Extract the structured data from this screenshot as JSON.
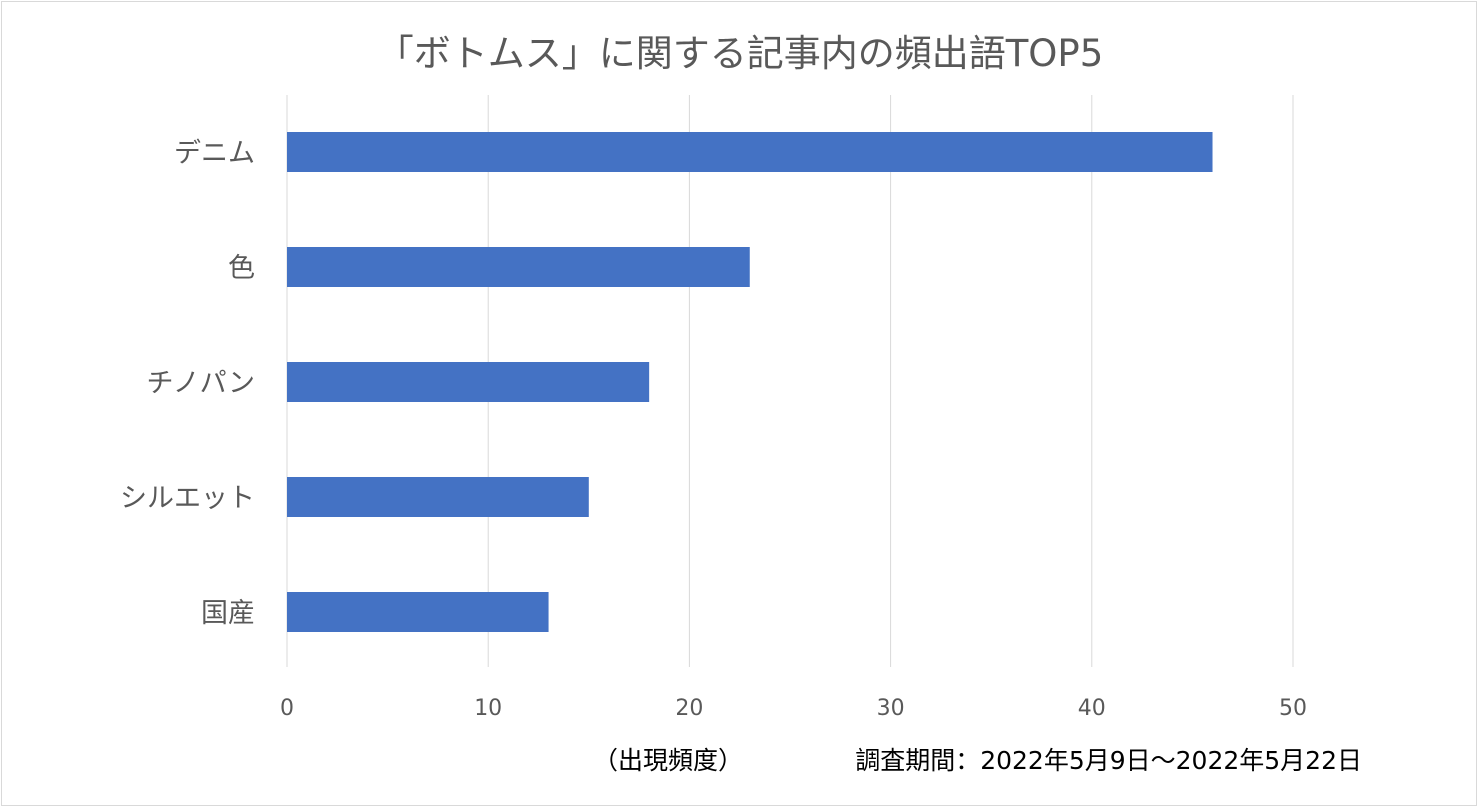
{
  "chart_data": {
    "type": "bar",
    "orientation": "horizontal",
    "title": "「ボトムス」に関する記事内の頻出語TOP5",
    "categories": [
      "デニム",
      "色",
      "チノパン",
      "シルエット",
      "国産"
    ],
    "values": [
      46,
      23,
      18,
      15,
      13
    ],
    "xlabel": "（出現頻度）",
    "ylabel": "",
    "xlim": [
      0,
      50
    ],
    "xticks": [
      0,
      10,
      20,
      30,
      40,
      50
    ],
    "grid": true,
    "legend": "none",
    "annotation": "調査期間：2022年5月9日～2022年5月22日",
    "bar_color": "#4472c4"
  }
}
